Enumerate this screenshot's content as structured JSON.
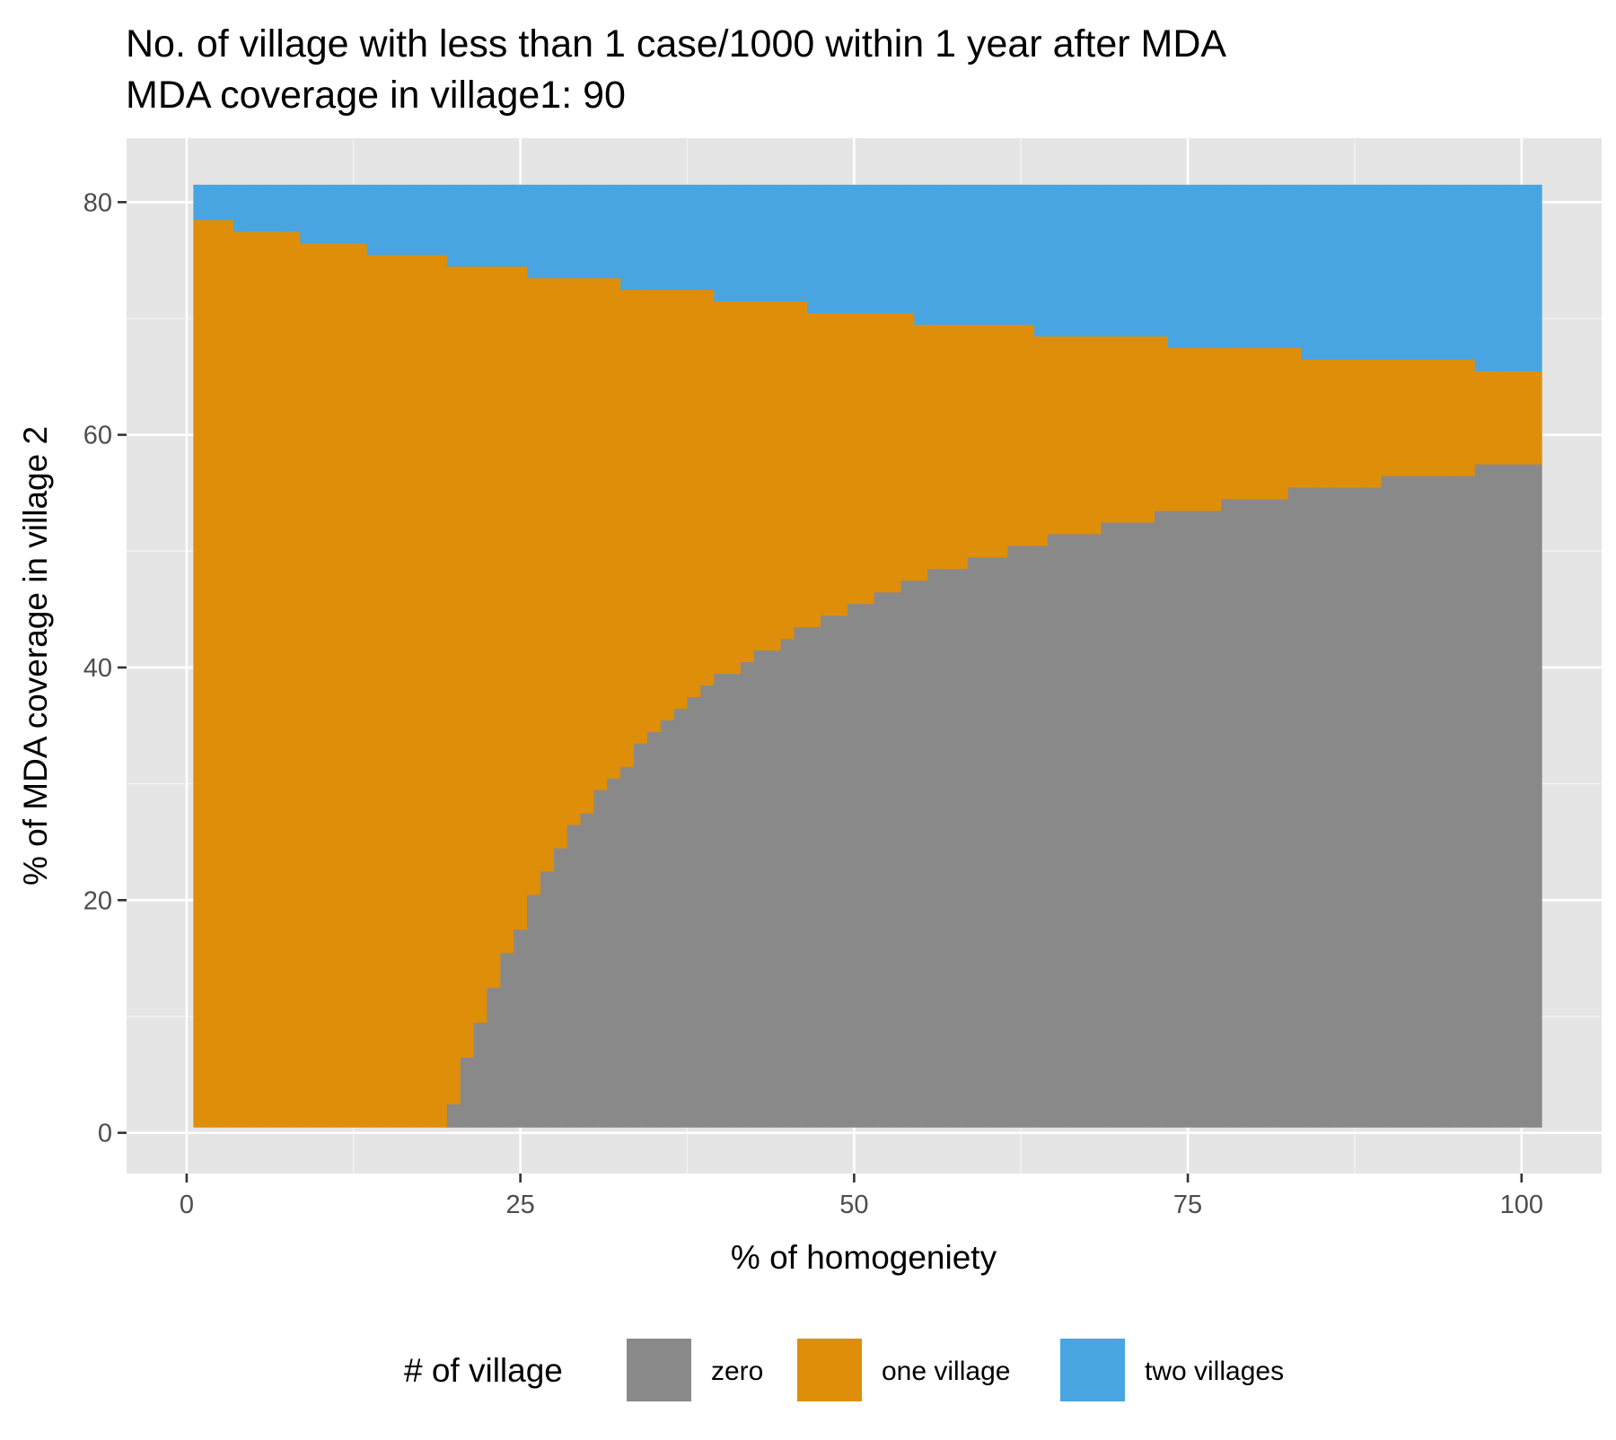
{
  "chart_data": {
    "type": "heatmap",
    "title": "No. of village with less than 1 case/1000 within 1 year after MDA",
    "subtitle": "MDA coverage in village1: 90",
    "xlabel": "% of homogeniety",
    "ylabel": "% of MDA coverage in village 2",
    "xlim": [
      -4.5,
      106
    ],
    "ylim": [
      -3.5,
      85.5
    ],
    "x_ticks": [
      0,
      25,
      50,
      75,
      100
    ],
    "x_tick_labels": [
      "0",
      "25",
      "50",
      "75",
      "100"
    ],
    "y_ticks": [
      0,
      20,
      40,
      60,
      80
    ],
    "y_tick_labels": [
      "0",
      "20",
      "40",
      "60",
      "80"
    ],
    "grid": true,
    "legend": {
      "title": "# of village",
      "position": "bottom",
      "entries": [
        {
          "label": "zero",
          "color": "#898989"
        },
        {
          "label": "one village",
          "color": "#DF8E0A"
        },
        {
          "label": "two villages",
          "color": "#48A5E2"
        }
      ]
    },
    "y_range": [
      1,
      81
    ],
    "x_range": [
      1,
      101
    ],
    "boundaries": {
      "zero_top_by_x": [
        {
          "x": 1,
          "y": 0
        },
        {
          "x": 20,
          "y": 2
        },
        {
          "x": 21,
          "y": 6
        },
        {
          "x": 22,
          "y": 9
        },
        {
          "x": 23,
          "y": 12
        },
        {
          "x": 24,
          "y": 15
        },
        {
          "x": 25,
          "y": 17
        },
        {
          "x": 26,
          "y": 20
        },
        {
          "x": 27,
          "y": 22
        },
        {
          "x": 28,
          "y": 24
        },
        {
          "x": 29,
          "y": 26
        },
        {
          "x": 30,
          "y": 27
        },
        {
          "x": 31,
          "y": 29
        },
        {
          "x": 32,
          "y": 30
        },
        {
          "x": 33,
          "y": 31
        },
        {
          "x": 34,
          "y": 33
        },
        {
          "x": 35,
          "y": 34
        },
        {
          "x": 36,
          "y": 35
        },
        {
          "x": 37,
          "y": 36
        },
        {
          "x": 38,
          "y": 37
        },
        {
          "x": 39,
          "y": 38
        },
        {
          "x": 40,
          "y": 39
        },
        {
          "x": 42,
          "y": 40
        },
        {
          "x": 43,
          "y": 41
        },
        {
          "x": 45,
          "y": 42
        },
        {
          "x": 46,
          "y": 43
        },
        {
          "x": 48,
          "y": 44
        },
        {
          "x": 50,
          "y": 45
        },
        {
          "x": 52,
          "y": 46
        },
        {
          "x": 54,
          "y": 47
        },
        {
          "x": 56,
          "y": 48
        },
        {
          "x": 59,
          "y": 49
        },
        {
          "x": 62,
          "y": 50
        },
        {
          "x": 65,
          "y": 51
        },
        {
          "x": 69,
          "y": 52
        },
        {
          "x": 73,
          "y": 53
        },
        {
          "x": 78,
          "y": 54
        },
        {
          "x": 83,
          "y": 55
        },
        {
          "x": 90,
          "y": 56
        },
        {
          "x": 97,
          "y": 57
        }
      ],
      "one_village_top_by_x": [
        {
          "x": 1,
          "y": 78
        },
        {
          "x": 4,
          "y": 77
        },
        {
          "x": 9,
          "y": 76
        },
        {
          "x": 14,
          "y": 75
        },
        {
          "x": 20,
          "y": 74
        },
        {
          "x": 26,
          "y": 73
        },
        {
          "x": 33,
          "y": 72
        },
        {
          "x": 40,
          "y": 71
        },
        {
          "x": 47,
          "y": 70
        },
        {
          "x": 55,
          "y": 69
        },
        {
          "x": 64,
          "y": 68
        },
        {
          "x": 74,
          "y": 67
        },
        {
          "x": 84,
          "y": 66
        },
        {
          "x": 97,
          "y": 65
        }
      ]
    }
  }
}
